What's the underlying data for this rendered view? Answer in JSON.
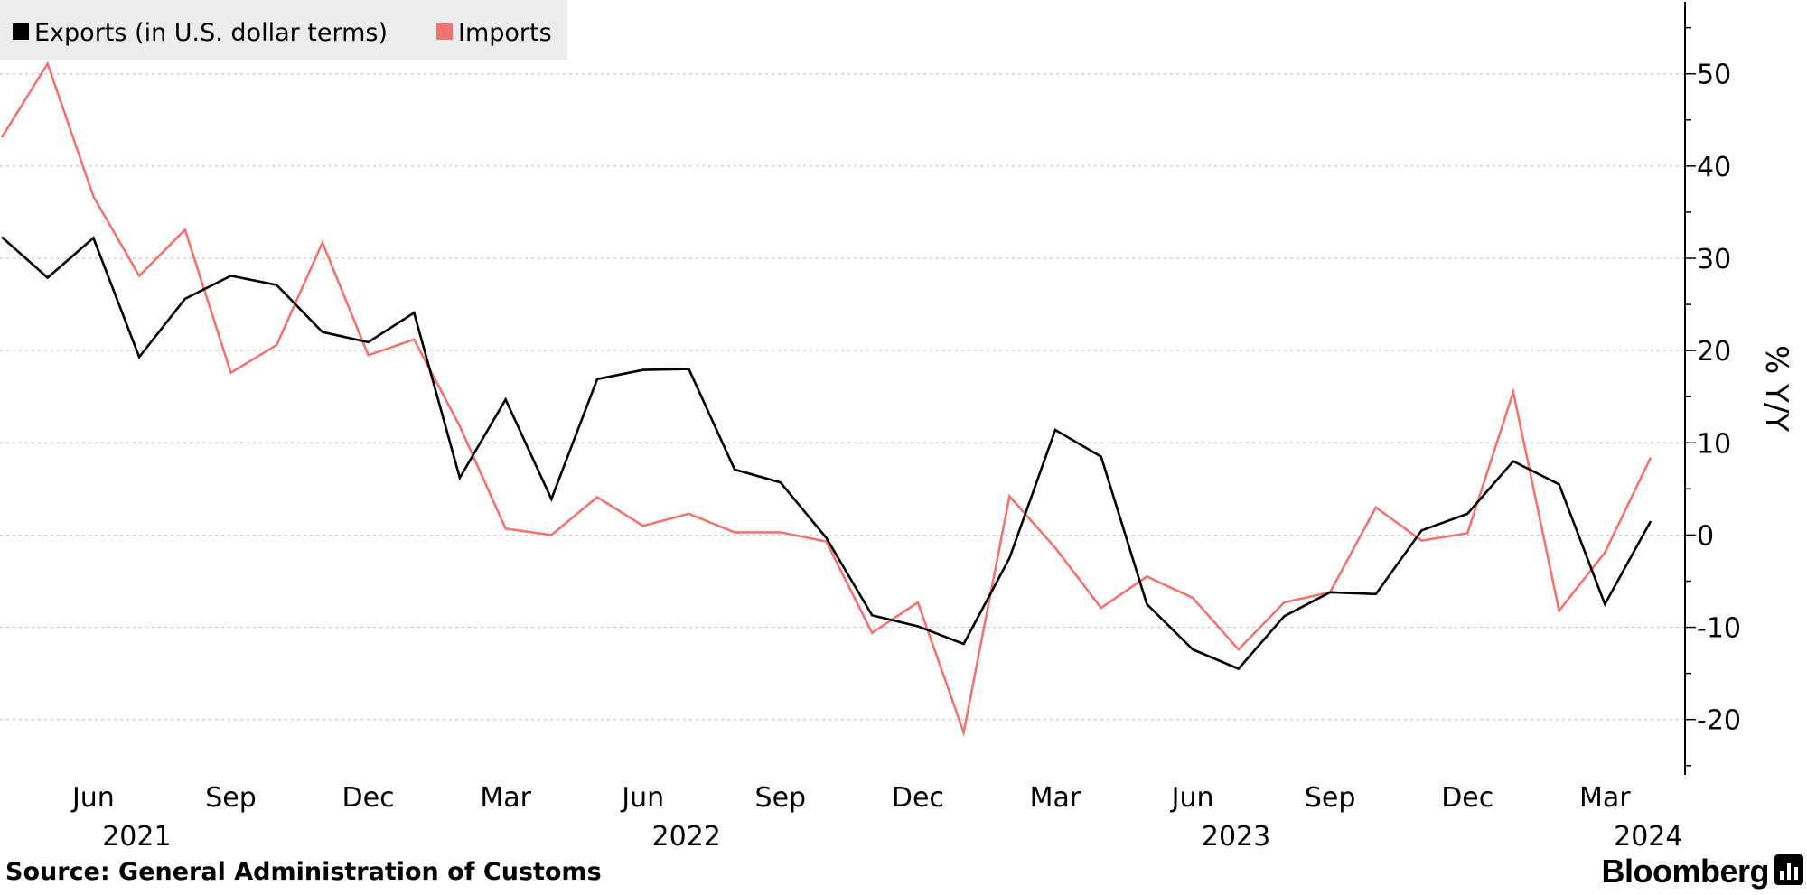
{
  "chart_data": {
    "type": "line",
    "x": [
      "2021-04",
      "2021-05",
      "2021-06",
      "2021-07",
      "2021-08",
      "2021-09",
      "2021-10",
      "2021-11",
      "2021-12",
      "2022-01",
      "2022-02",
      "2022-03",
      "2022-04",
      "2022-05",
      "2022-06",
      "2022-07",
      "2022-08",
      "2022-09",
      "2022-10",
      "2022-11",
      "2022-12",
      "2023-01",
      "2023-02",
      "2023-03",
      "2023-04",
      "2023-05",
      "2023-06",
      "2023-07",
      "2023-08",
      "2023-09",
      "2023-10",
      "2023-11",
      "2023-12",
      "2024-01",
      "2024-02",
      "2024-03",
      "2024-04"
    ],
    "series": [
      {
        "name": "Exports (in U.S. dollar terms)",
        "color": "#000000",
        "values": [
          32.3,
          27.9,
          32.2,
          19.3,
          25.6,
          28.1,
          27.1,
          22.0,
          20.9,
          24.1,
          6.2,
          14.7,
          3.9,
          16.9,
          17.9,
          18.0,
          7.1,
          5.7,
          -0.3,
          -8.7,
          -9.9,
          -11.8,
          -2.5,
          11.4,
          8.5,
          -7.5,
          -12.4,
          -14.5,
          -8.8,
          -6.2,
          -6.4,
          0.5,
          2.3,
          8.0,
          5.5,
          -7.5,
          1.5
        ]
      },
      {
        "name": "Imports",
        "color": "#f07470",
        "values": [
          43.1,
          51.1,
          36.7,
          28.1,
          33.1,
          17.6,
          20.6,
          31.7,
          19.5,
          21.2,
          11.8,
          0.7,
          0.0,
          4.1,
          1.0,
          2.3,
          0.3,
          0.3,
          -0.7,
          -10.6,
          -7.3,
          -21.4,
          4.2,
          -1.4,
          -7.9,
          -4.5,
          -6.8,
          -12.4,
          -7.3,
          -6.2,
          3.0,
          -0.6,
          0.2,
          15.5,
          -8.2,
          -1.9,
          8.4
        ]
      }
    ],
    "ylim": [
      -26,
      58
    ],
    "yticks": [
      "50",
      "40",
      "30",
      "20",
      "10",
      "0",
      "-10",
      "-20"
    ],
    "ylabel": "% Y/Y",
    "xtick_labels": [
      {
        "month": "Jun",
        "year": "2021"
      },
      {
        "month": "Sep",
        "year": ""
      },
      {
        "month": "Dec",
        "year": ""
      },
      {
        "month": "Mar",
        "year": ""
      },
      {
        "month": "Jun",
        "year": "2022"
      },
      {
        "month": "Sep",
        "year": ""
      },
      {
        "month": "Dec",
        "year": ""
      },
      {
        "month": "Mar",
        "year": ""
      },
      {
        "month": "Jun",
        "year": "2023"
      },
      {
        "month": "Sep",
        "year": ""
      },
      {
        "month": "Dec",
        "year": ""
      },
      {
        "month": "Mar",
        "year": "2024"
      }
    ],
    "grid": true,
    "legend_position": "top-left",
    "y_axis_side": "right"
  },
  "source_text": "Source:  General Administration of Customs",
  "brand": "Bloomberg"
}
